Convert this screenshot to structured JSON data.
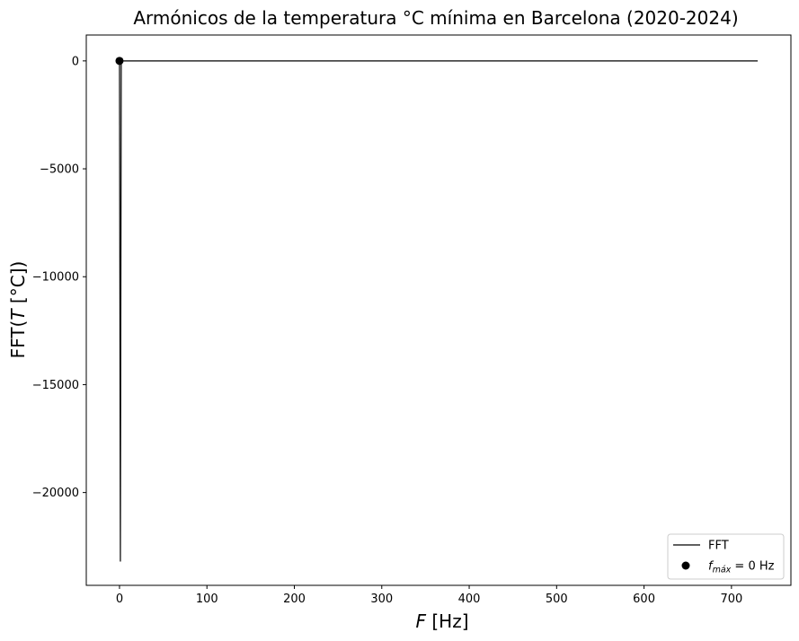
{
  "chart_data": {
    "type": "line",
    "title": "Armónicos de la temperatura °C mínima en Barcelona (2020-2024)",
    "xlabel": "F [Hz]",
    "ylabel": "FFT(T [°C])",
    "xlim": [
      -38,
      768
    ],
    "ylim": [
      -24300,
      1200
    ],
    "xticks": [
      0,
      100,
      200,
      300,
      400,
      500,
      600,
      700
    ],
    "yticks": [
      0,
      -5000,
      -10000,
      -15000,
      -20000
    ],
    "ytick_labels": [
      "0",
      "−5000",
      "−10000",
      "−15000",
      "−20000"
    ],
    "grid": false,
    "legend_position": "lower-right",
    "series": [
      {
        "name": "FFT",
        "kind": "line",
        "color": "#000000",
        "x": [
          0,
          1,
          2,
          3,
          4,
          730
        ],
        "y": [
          0,
          -23200,
          -20,
          0,
          0,
          0
        ]
      }
    ],
    "marker": {
      "label_main": "f",
      "label_sub": "máx",
      "label_rest": " = 0 Hz",
      "x": 0,
      "y": 0,
      "color": "#000000"
    }
  }
}
